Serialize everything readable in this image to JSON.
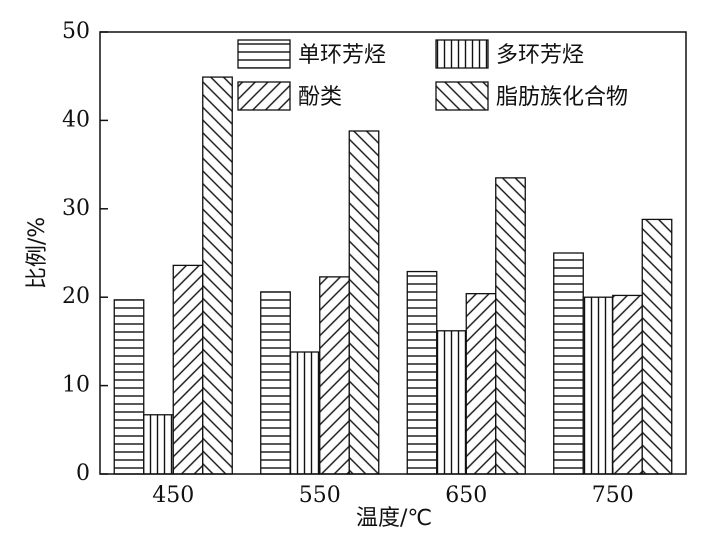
{
  "chart_data": {
    "type": "bar",
    "categories": [
      "450",
      "550",
      "650",
      "750"
    ],
    "series": [
      {
        "name": "单环芳烃",
        "values": [
          19.7,
          20.6,
          22.9,
          25.0
        ],
        "pattern": "horizontal"
      },
      {
        "name": "多环芳烃",
        "values": [
          6.7,
          13.8,
          16.2,
          20.0
        ],
        "pattern": "vertical"
      },
      {
        "name": "酚类",
        "values": [
          23.6,
          22.3,
          20.4,
          20.2
        ],
        "pattern": "backslash"
      },
      {
        "name": "脂肪族化合物",
        "values": [
          44.9,
          38.8,
          33.5,
          28.8
        ],
        "pattern": "slash"
      }
    ],
    "xlabel": "温度/℃",
    "ylabel": "比例/%",
    "ylim": [
      0,
      50
    ],
    "yticks": [
      "0",
      "10",
      "20",
      "30",
      "40",
      "50"
    ],
    "legend_position": "top-right",
    "grid": false
  }
}
